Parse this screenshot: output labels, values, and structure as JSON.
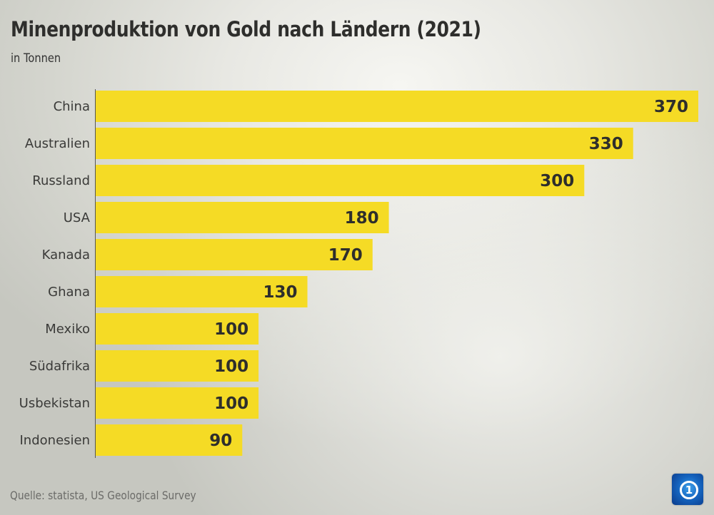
{
  "title": "Minenproduktion von Gold nach Ländern (2021)",
  "subtitle": "in Tonnen",
  "source": "Quelle: statista, US Geological Survey",
  "logo": {
    "icon": "tagesschau-logo-icon",
    "glyph": "1"
  },
  "colors": {
    "bar": "#f5db25",
    "axis": "#555555"
  },
  "chart_data": {
    "type": "bar",
    "orientation": "horizontal",
    "title": "Minenproduktion von Gold nach Ländern (2021)",
    "subtitle": "in Tonnen",
    "xlabel": "",
    "ylabel": "",
    "categories": [
      "China",
      "Australien",
      "Russland",
      "USA",
      "Kanada",
      "Ghana",
      "Mexiko",
      "Südafrika",
      "Usbekistan",
      "Indonesien"
    ],
    "values": [
      370,
      330,
      300,
      180,
      170,
      130,
      100,
      100,
      100,
      90
    ],
    "value_labels": [
      "370",
      "330",
      "300",
      "180",
      "170",
      "130",
      "100",
      "100",
      "100",
      "90"
    ],
    "xlim": [
      0,
      370
    ],
    "grid": false,
    "legend": "none",
    "source": "Quelle: statista, US Geological Survey"
  }
}
